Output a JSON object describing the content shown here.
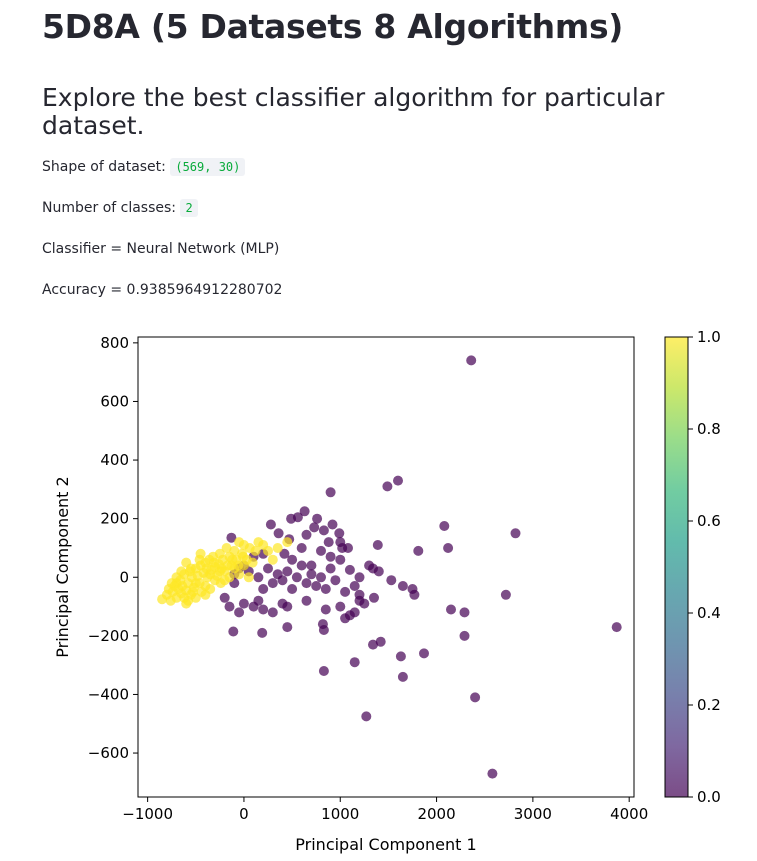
{
  "header": {
    "title": "5D8A (5 Datasets 8 Algorithms)",
    "subtitle": "Explore the best classifier algorithm for particular dataset."
  },
  "info": {
    "shape_label": "Shape of dataset:",
    "shape_value": "(569, 30)",
    "classes_label": "Number of classes:",
    "classes_value": "2",
    "classifier_text": "Classifier = Neural Network (MLP)",
    "accuracy_text": "Accuracy = 0.9385964912280702"
  },
  "chart_data": {
    "type": "scatter",
    "title": "",
    "xlabel": "Principal Component 1",
    "ylabel": "Principal Component 2",
    "xlim": [
      -1100,
      4050
    ],
    "ylim": [
      -750,
      820
    ],
    "xticks": [
      -1000,
      0,
      1000,
      2000,
      3000,
      4000
    ],
    "xtick_labels": [
      "−1000",
      "0",
      "1000",
      "2000",
      "3000",
      "4000"
    ],
    "yticks": [
      -600,
      -400,
      -200,
      0,
      200,
      400,
      600,
      800
    ],
    "ytick_labels": [
      "−600",
      "−400",
      "−200",
      "0",
      "200",
      "400",
      "600",
      "800"
    ],
    "colormap": "viridis",
    "marker_alpha": 0.7,
    "colorbar": {
      "range": [
        0.0,
        1.0
      ],
      "ticks": [
        0.0,
        0.2,
        0.4,
        0.6,
        0.8,
        1.0
      ],
      "tick_labels": [
        "0.0",
        "0.2",
        "0.4",
        "0.6",
        "0.8",
        "1.0"
      ],
      "stops": [
        "#440154",
        "#482878",
        "#3e4a89",
        "#31688e",
        "#26828e",
        "#1f9e89",
        "#35b779",
        "#6ece58",
        "#b5de2b",
        "#fde725"
      ]
    },
    "class_colors": {
      "0": "#440154",
      "1": "#fde725"
    },
    "series": [
      {
        "label": 0,
        "points": [
          [
            2360,
            740
          ],
          [
            1600,
            330
          ],
          [
            1490,
            310
          ],
          [
            900,
            290
          ],
          [
            630,
            225
          ],
          [
            560,
            205
          ],
          [
            490,
            200
          ],
          [
            760,
            200
          ],
          [
            920,
            180
          ],
          [
            2080,
            175
          ],
          [
            280,
            180
          ],
          [
            830,
            160
          ],
          [
            730,
            170
          ],
          [
            990,
            150
          ],
          [
            650,
            145
          ],
          [
            360,
            150
          ],
          [
            470,
            130
          ],
          [
            -130,
            135
          ],
          [
            2820,
            150
          ],
          [
            880,
            120
          ],
          [
            1000,
            120
          ],
          [
            1080,
            100
          ],
          [
            1020,
            100
          ],
          [
            1390,
            110
          ],
          [
            2120,
            100
          ],
          [
            1810,
            90
          ],
          [
            600,
            100
          ],
          [
            800,
            90
          ],
          [
            420,
            80
          ],
          [
            900,
            70
          ],
          [
            500,
            60
          ],
          [
            1000,
            60
          ],
          [
            1300,
            40
          ],
          [
            1200,
            0
          ],
          [
            1100,
            25
          ],
          [
            1340,
            30
          ],
          [
            1400,
            20
          ],
          [
            600,
            40
          ],
          [
            700,
            40
          ],
          [
            900,
            30
          ],
          [
            1150,
            -30
          ],
          [
            1530,
            -10
          ],
          [
            1650,
            -30
          ],
          [
            200,
            80
          ],
          [
            100,
            70
          ],
          [
            0,
            40
          ],
          [
            -50,
            30
          ],
          [
            -100,
            10
          ],
          [
            -100,
            -20
          ],
          [
            50,
            20
          ],
          [
            150,
            0
          ],
          [
            200,
            -40
          ],
          [
            250,
            30
          ],
          [
            300,
            -20
          ],
          [
            350,
            10
          ],
          [
            400,
            -10
          ],
          [
            450,
            20
          ],
          [
            500,
            -40
          ],
          [
            550,
            0
          ],
          [
            650,
            -20
          ],
          [
            700,
            10
          ],
          [
            750,
            -30
          ],
          [
            800,
            0
          ],
          [
            850,
            -40
          ],
          [
            950,
            -10
          ],
          [
            1050,
            -50
          ],
          [
            1200,
            -60
          ],
          [
            1350,
            -70
          ],
          [
            1750,
            -40
          ],
          [
            1770,
            -60
          ],
          [
            2720,
            -60
          ],
          [
            -200,
            -70
          ],
          [
            -150,
            -100
          ],
          [
            -50,
            -120
          ],
          [
            0,
            -90
          ],
          [
            100,
            -100
          ],
          [
            150,
            -80
          ],
          [
            200,
            -110
          ],
          [
            300,
            -120
          ],
          [
            400,
            -90
          ],
          [
            450,
            -100
          ],
          [
            650,
            -80
          ],
          [
            850,
            -110
          ],
          [
            1000,
            -100
          ],
          [
            1150,
            -120
          ],
          [
            1250,
            -90
          ],
          [
            1050,
            -140
          ],
          [
            1100,
            -130
          ],
          [
            1200,
            -80
          ],
          [
            -110,
            -185
          ],
          [
            190,
            -190
          ],
          [
            450,
            -170
          ],
          [
            820,
            -160
          ],
          [
            830,
            -180
          ],
          [
            2150,
            -110
          ],
          [
            2290,
            -120
          ],
          [
            2290,
            -200
          ],
          [
            1420,
            -220
          ],
          [
            1340,
            -230
          ],
          [
            1630,
            -270
          ],
          [
            1870,
            -260
          ],
          [
            1150,
            -290
          ],
          [
            830,
            -320
          ],
          [
            1650,
            -340
          ],
          [
            3870,
            -170
          ],
          [
            2400,
            -410
          ],
          [
            1270,
            -475
          ],
          [
            2580,
            -670
          ]
        ]
      },
      {
        "label": 1,
        "points": [
          [
            -850,
            -75
          ],
          [
            -800,
            -60
          ],
          [
            -780,
            -40
          ],
          [
            -760,
            -80
          ],
          [
            -740,
            -50
          ],
          [
            -720,
            -30
          ],
          [
            -700,
            -70
          ],
          [
            -700,
            -20
          ],
          [
            -680,
            -40
          ],
          [
            -660,
            -10
          ],
          [
            -650,
            -55
          ],
          [
            -640,
            -30
          ],
          [
            -620,
            10
          ],
          [
            -600,
            -45
          ],
          [
            -600,
            -90
          ],
          [
            -580,
            -20
          ],
          [
            -560,
            20
          ],
          [
            -550,
            -60
          ],
          [
            -540,
            0
          ],
          [
            -520,
            -35
          ],
          [
            -500,
            30
          ],
          [
            -500,
            -70
          ],
          [
            -480,
            5
          ],
          [
            -460,
            -20
          ],
          [
            -450,
            40
          ],
          [
            -440,
            -50
          ],
          [
            -420,
            15
          ],
          [
            -400,
            50
          ],
          [
            -400,
            -30
          ],
          [
            -380,
            0
          ],
          [
            -360,
            60
          ],
          [
            -350,
            -40
          ],
          [
            -340,
            25
          ],
          [
            -320,
            70
          ],
          [
            -300,
            35
          ],
          [
            -300,
            -10
          ],
          [
            -280,
            5
          ],
          [
            -260,
            45
          ],
          [
            -250,
            80
          ],
          [
            -240,
            -20
          ],
          [
            -220,
            60
          ],
          [
            -200,
            20
          ],
          [
            -180,
            100
          ],
          [
            -150,
            70
          ],
          [
            -130,
            40
          ],
          [
            -100,
            90
          ],
          [
            -80,
            60
          ],
          [
            -50,
            120
          ],
          [
            -20,
            80
          ],
          [
            0,
            110
          ],
          [
            30,
            60
          ],
          [
            60,
            100
          ],
          [
            90,
            50
          ],
          [
            120,
            90
          ],
          [
            150,
            120
          ],
          [
            200,
            110
          ],
          [
            250,
            90
          ],
          [
            300,
            60
          ],
          [
            350,
            100
          ],
          [
            450,
            120
          ],
          [
            -600,
            50
          ],
          [
            -550,
            30
          ],
          [
            -450,
            80
          ],
          [
            -650,
            20
          ],
          [
            -700,
            0
          ],
          [
            -750,
            -20
          ],
          [
            -500,
            -20
          ],
          [
            -400,
            -60
          ],
          [
            -350,
            10
          ],
          [
            -250,
            20
          ],
          [
            -200,
            -10
          ],
          [
            -150,
            0
          ],
          [
            -100,
            30
          ],
          [
            -50,
            10
          ],
          [
            0,
            40
          ],
          [
            50,
            0
          ],
          [
            -580,
            -80
          ],
          [
            -620,
            -70
          ],
          [
            -530,
            -50
          ],
          [
            -460,
            60
          ],
          [
            -390,
            30
          ],
          [
            -310,
            50
          ],
          [
            -230,
            30
          ],
          [
            -170,
            40
          ],
          [
            -120,
            60
          ],
          [
            -60,
            40
          ],
          [
            -10,
            70
          ]
        ]
      }
    ]
  }
}
